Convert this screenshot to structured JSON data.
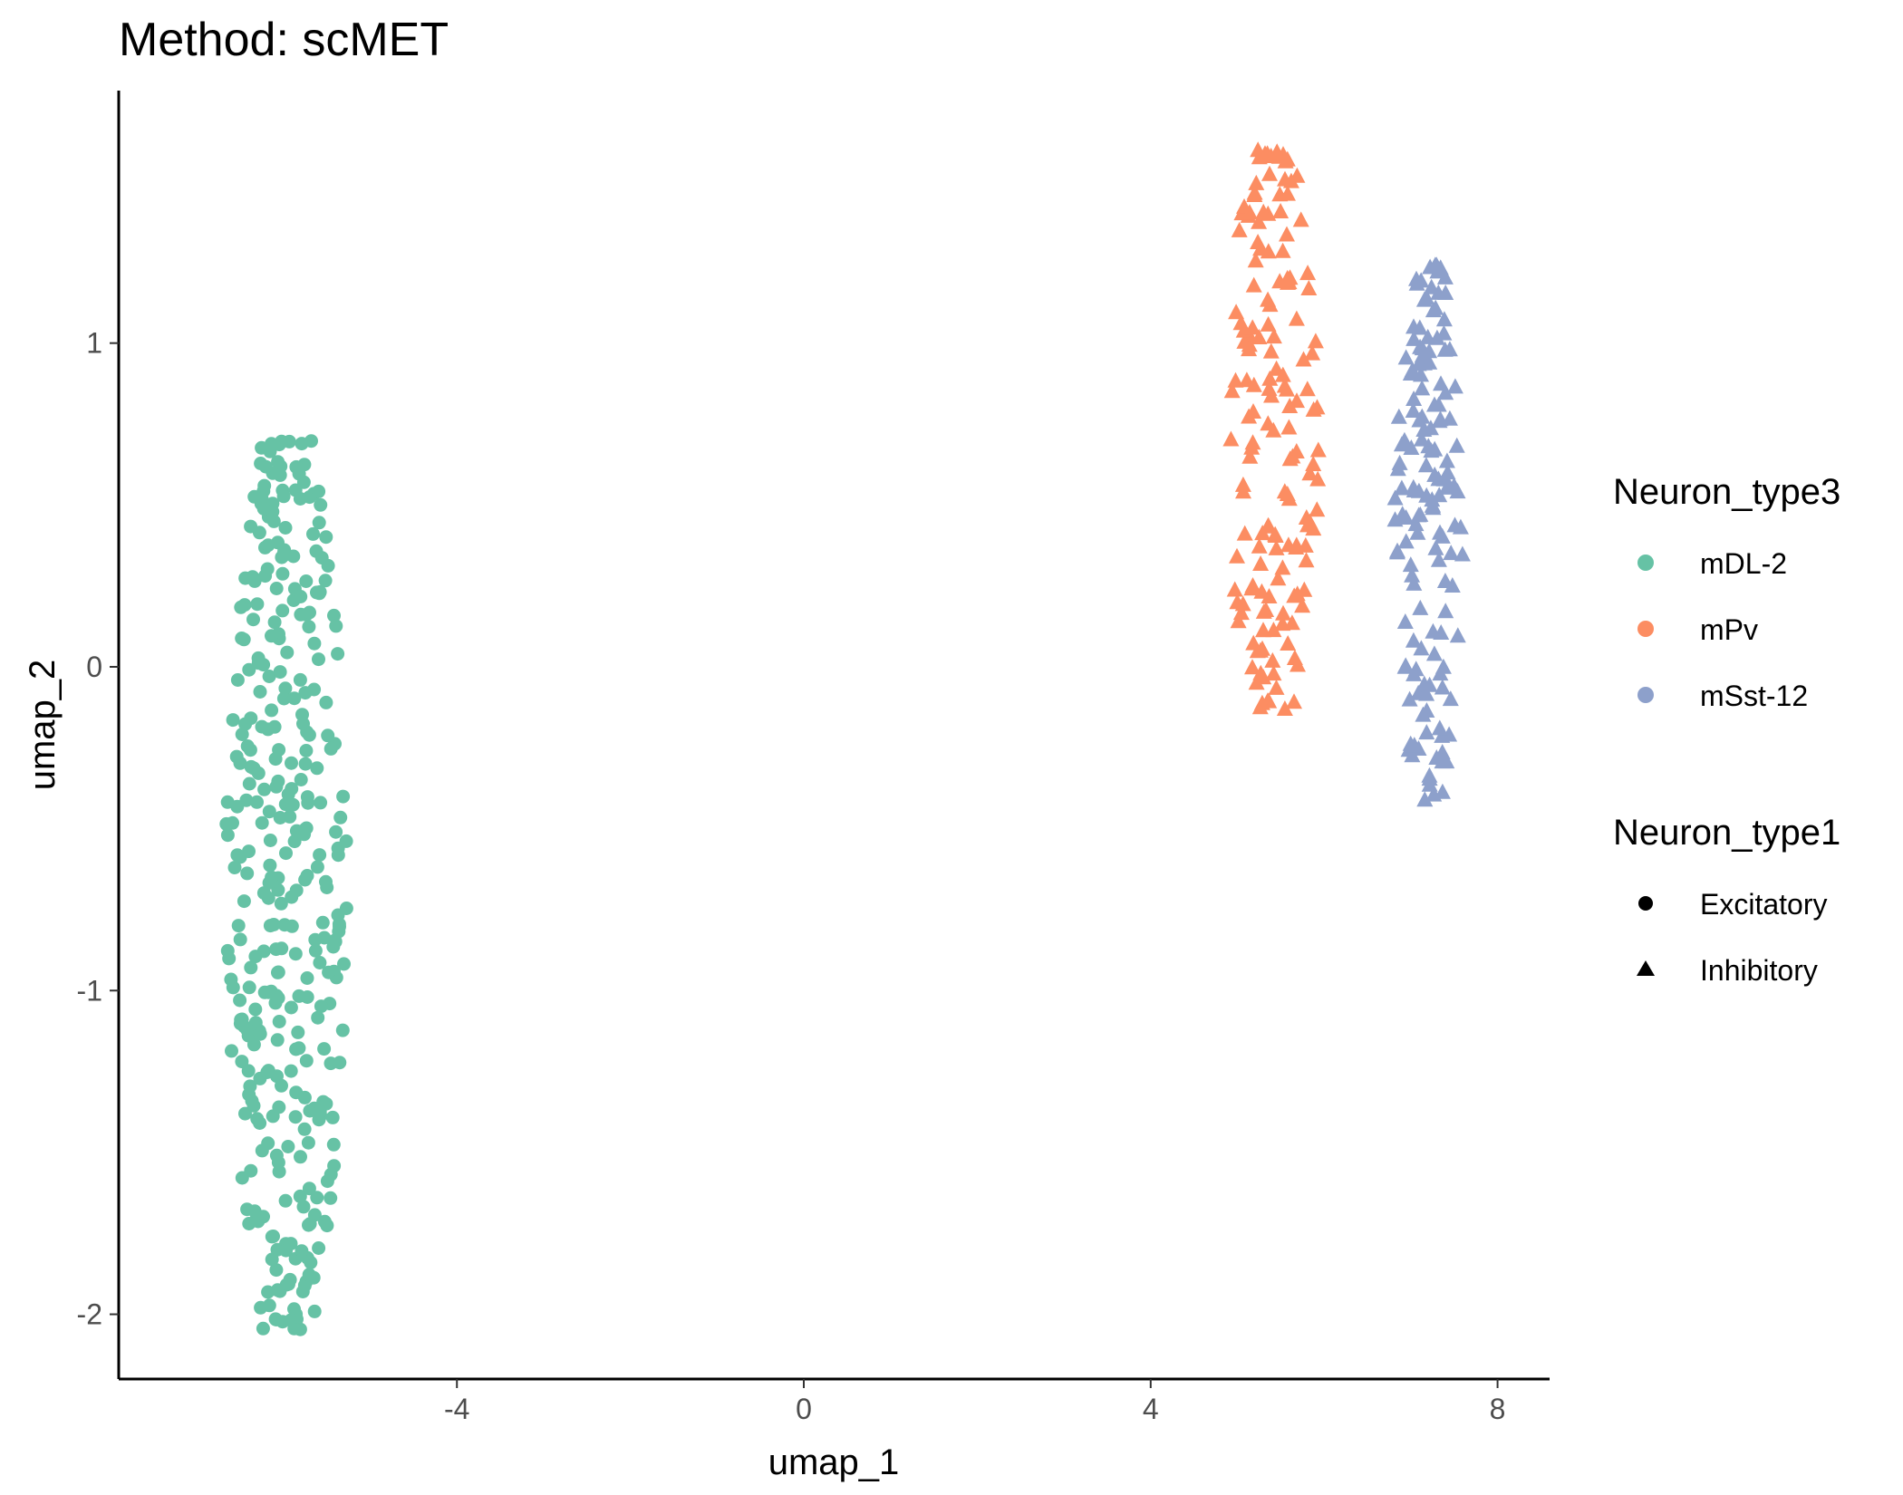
{
  "chart_data": {
    "type": "scatter",
    "title": "Method: scMET",
    "xlabel": "umap_1",
    "ylabel": "umap_2",
    "xlim": [
      -7.9,
      8.6
    ],
    "ylim": [
      -2.2,
      1.78
    ],
    "x_ticks": [
      -4,
      0,
      4,
      8
    ],
    "y_ticks": [
      -2,
      -1,
      0,
      1
    ],
    "grid": false,
    "legend_position": "right",
    "color_legend": {
      "title": "Neuron_type3",
      "entries": [
        {
          "label": "mDL-2",
          "color": "#66C2A5"
        },
        {
          "label": "mPv",
          "color": "#FC8D62"
        },
        {
          "label": "mSst-12",
          "color": "#8DA0CB"
        }
      ]
    },
    "shape_legend": {
      "title": "Neuron_type1",
      "entries": [
        {
          "label": "Excitatory",
          "shape": "circle"
        },
        {
          "label": "Inhibitory",
          "shape": "triangle"
        }
      ]
    },
    "series": [
      {
        "name": "mDL-2",
        "neuron_type1": "Excitatory",
        "color": "#66C2A5",
        "shape": "circle",
        "count": 360,
        "x_center": -5.95,
        "x_spread": 0.72,
        "y_min": -2.05,
        "y_max": 0.7
      },
      {
        "name": "mPv",
        "neuron_type1": "Inhibitory",
        "color": "#FC8D62",
        "shape": "triangle",
        "count": 160,
        "x_center": 5.4,
        "x_spread": 0.55,
        "y_min": -0.15,
        "y_max": 1.6
      },
      {
        "name": "mSst-12",
        "neuron_type1": "Inhibitory",
        "color": "#8DA0CB",
        "shape": "triangle",
        "count": 150,
        "x_center": 7.2,
        "x_spread": 0.4,
        "y_min": -0.42,
        "y_max": 1.25
      }
    ]
  }
}
